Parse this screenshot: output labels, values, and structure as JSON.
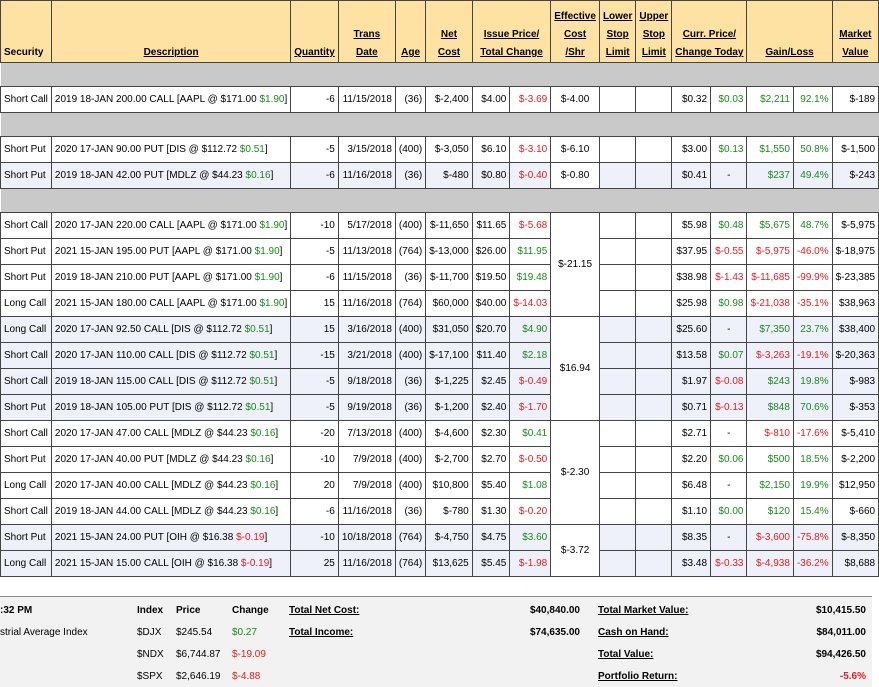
{
  "headers": {
    "security": "Security",
    "description": "Description",
    "quantity": "Quantity",
    "trans_date_1": "Trans",
    "trans_date_2": "Date",
    "age": "Age",
    "net_cost_1": "Net",
    "net_cost_2": "Cost",
    "issue_price_1": "Issue Price/",
    "issue_price_2": "Total Change",
    "eff_cost_1": "Effective",
    "eff_cost_2": "Cost",
    "eff_cost_3": "/Shr",
    "lower_stop_1": "Lower",
    "lower_stop_2": "Stop",
    "lower_stop_3": "Limit",
    "upper_stop_1": "Upper",
    "upper_stop_2": "Stop",
    "upper_stop_3": "Limit",
    "curr_price_1": "Curr. Price/",
    "curr_price_2": "Change Today",
    "gain_loss": "Gain/Loss",
    "market_value_1": "Market",
    "market_value_2": "Value"
  },
  "rows": [
    {
      "sec": "Short Call",
      "desc": "2019 18-JAN 200.00 CALL [AAPL @ $171.00 ",
      "dchg": "$1.90",
      "dsign": "pos",
      "qty": "-6",
      "date": "11/15/2018",
      "age": "(36)",
      "cost": "$-2,400",
      "issue": "$4.00",
      "tchg": "$-3.69",
      "tsign": "neg",
      "curr": "$0.32",
      "today": "$0.03",
      "ysign": "pos",
      "gl": "$2,211",
      "glp": "92.1%",
      "gsign": "pos",
      "mv": "$-189"
    },
    {
      "sec": "Short Put",
      "desc": "2020 17-JAN 90.00 PUT [DIS @ $112.72 ",
      "dchg": "$0.51",
      "dsign": "pos",
      "qty": "-5",
      "date": "3/15/2018",
      "age": "(400)",
      "cost": "$-3,050",
      "issue": "$6.10",
      "tchg": "$-3.10",
      "tsign": "neg",
      "curr": "$3.00",
      "today": "$0.13",
      "ysign": "pos",
      "gl": "$1,550",
      "glp": "50.8%",
      "gsign": "pos",
      "mv": "$-1,500"
    },
    {
      "sec": "Short Put",
      "desc": "2019 18-JAN 42.00 PUT [MDLZ @ $44.23 ",
      "dchg": "$0.16",
      "dsign": "pos",
      "qty": "-6",
      "date": "11/16/2018",
      "age": "(36)",
      "cost": "$-480",
      "issue": "$0.80",
      "tchg": "$-0.40",
      "tsign": "neg",
      "curr": "$0.41",
      "today": "-",
      "ysign": "none",
      "gl": "$237",
      "glp": "49.4%",
      "gsign": "pos",
      "mv": "$-243"
    },
    {
      "sec": "Short Call",
      "desc": "2020 17-JAN 220.00 CALL [AAPL @ $171.00 ",
      "dchg": "$1.90",
      "dsign": "pos",
      "qty": "-10",
      "date": "5/17/2018",
      "age": "(400)",
      "cost": "$-11,650",
      "issue": "$11.65",
      "tchg": "$-5.68",
      "tsign": "neg",
      "curr": "$5.98",
      "today": "$0.48",
      "ysign": "pos",
      "gl": "$5,675",
      "glp": "48.7%",
      "gsign": "pos",
      "mv": "$-5,975"
    },
    {
      "sec": "Short Put",
      "desc": "2021 15-JAN 195.00 PUT [AAPL @ $171.00 ",
      "dchg": "$1.90",
      "dsign": "pos",
      "qty": "-5",
      "date": "11/13/2018",
      "age": "(764)",
      "cost": "$-13,000",
      "issue": "$26.00",
      "tchg": "$11.95",
      "tsign": "pos",
      "curr": "$37.95",
      "today": "$-0.55",
      "ysign": "neg",
      "gl": "$-5,975",
      "glp": "-46.0%",
      "gsign": "neg",
      "mv": "$-18,975"
    },
    {
      "sec": "Short Put",
      "desc": "2019 18-JAN 210.00 PUT [AAPL @ $171.00 ",
      "dchg": "$1.90",
      "dsign": "pos",
      "qty": "-6",
      "date": "11/15/2018",
      "age": "(36)",
      "cost": "$-11,700",
      "issue": "$19.50",
      "tchg": "$19.48",
      "tsign": "pos",
      "curr": "$38.98",
      "today": "$-1.43",
      "ysign": "neg",
      "gl": "$-11,685",
      "glp": "-99.9%",
      "gsign": "neg",
      "mv": "$-23,385"
    },
    {
      "sec": "Long Call",
      "desc": "2021 15-JAN 180.00 CALL [AAPL @ $171.00 ",
      "dchg": "$1.90",
      "dsign": "pos",
      "qty": "15",
      "date": "11/16/2018",
      "age": "(764)",
      "cost": "$60,000",
      "issue": "$40.00",
      "tchg": "$-14.03",
      "tsign": "neg",
      "curr": "$25.98",
      "today": "$0.98",
      "ysign": "pos",
      "gl": "$-21,038",
      "glp": "-35.1%",
      "gsign": "neg",
      "mv": "$38,963"
    },
    {
      "sec": "Long Call",
      "desc": "2020 17-JAN 92.50 CALL [DIS @ $112.72 ",
      "dchg": "$0.51",
      "dsign": "pos",
      "qty": "15",
      "date": "3/16/2018",
      "age": "(400)",
      "cost": "$31,050",
      "issue": "$20.70",
      "tchg": "$4.90",
      "tsign": "pos",
      "curr": "$25.60",
      "today": "-",
      "ysign": "none",
      "gl": "$7,350",
      "glp": "23.7%",
      "gsign": "pos",
      "mv": "$38,400"
    },
    {
      "sec": "Short Call",
      "desc": "2020 17-JAN 110.00 CALL [DIS @ $112.72 ",
      "dchg": "$0.51",
      "dsign": "pos",
      "qty": "-15",
      "date": "3/21/2018",
      "age": "(400)",
      "cost": "$-17,100",
      "issue": "$11.40",
      "tchg": "$2.18",
      "tsign": "pos",
      "curr": "$13.58",
      "today": "$0.07",
      "ysign": "pos",
      "gl": "$-3,263",
      "glp": "-19.1%",
      "gsign": "neg",
      "mv": "$-20,363"
    },
    {
      "sec": "Short Call",
      "desc": "2019 18-JAN 115.00 CALL [DIS @ $112.72 ",
      "dchg": "$0.51",
      "dsign": "pos",
      "qty": "-5",
      "date": "9/18/2018",
      "age": "(36)",
      "cost": "$-1,225",
      "issue": "$2.45",
      "tchg": "$-0.49",
      "tsign": "neg",
      "curr": "$1.97",
      "today": "$-0.08",
      "ysign": "neg",
      "gl": "$243",
      "glp": "19.8%",
      "gsign": "pos",
      "mv": "$-983"
    },
    {
      "sec": "Short Put",
      "desc": "2019 18-JAN 105.00 PUT [DIS @ $112.72 ",
      "dchg": "$0.51",
      "dsign": "pos",
      "qty": "-5",
      "date": "9/19/2018",
      "age": "(36)",
      "cost": "$-1,200",
      "issue": "$2.40",
      "tchg": "$-1.70",
      "tsign": "neg",
      "curr": "$0.71",
      "today": "$-0.13",
      "ysign": "neg",
      "gl": "$848",
      "glp": "70.6%",
      "gsign": "pos",
      "mv": "$-353"
    },
    {
      "sec": "Short Call",
      "desc": "2020 17-JAN 47.00 CALL [MDLZ @ $44.23 ",
      "dchg": "$0.16",
      "dsign": "pos",
      "qty": "-20",
      "date": "7/13/2018",
      "age": "(400)",
      "cost": "$-4,600",
      "issue": "$2.30",
      "tchg": "$0.41",
      "tsign": "pos",
      "curr": "$2.71",
      "today": "-",
      "ysign": "none",
      "gl": "$-810",
      "glp": "-17.6%",
      "gsign": "neg",
      "mv": "$-5,410"
    },
    {
      "sec": "Short Put",
      "desc": "2020 17-JAN 40.00 PUT [MDLZ @ $44.23 ",
      "dchg": "$0.16",
      "dsign": "pos",
      "qty": "-10",
      "date": "7/9/2018",
      "age": "(400)",
      "cost": "$-2,700",
      "issue": "$2.70",
      "tchg": "$-0.50",
      "tsign": "neg",
      "curr": "$2.20",
      "today": "$0.06",
      "ysign": "pos",
      "gl": "$500",
      "glp": "18.5%",
      "gsign": "pos",
      "mv": "$-2,200"
    },
    {
      "sec": "Long Call",
      "desc": "2020 17-JAN 40.00 CALL [MDLZ @ $44.23 ",
      "dchg": "$0.16",
      "dsign": "pos",
      "qty": "20",
      "date": "7/9/2018",
      "age": "(400)",
      "cost": "$10,800",
      "issue": "$5.40",
      "tchg": "$1.08",
      "tsign": "pos",
      "curr": "$6.48",
      "today": "-",
      "ysign": "none",
      "gl": "$2,150",
      "glp": "19.9%",
      "gsign": "pos",
      "mv": "$12,950"
    },
    {
      "sec": "Short Call",
      "desc": "2019 18-JAN 44.00 CALL [MDLZ @ $44.23 ",
      "dchg": "$0.16",
      "dsign": "pos",
      "qty": "-6",
      "date": "11/16/2018",
      "age": "(36)",
      "cost": "$-780",
      "issue": "$1.30",
      "tchg": "$-0.20",
      "tsign": "neg",
      "curr": "$1.10",
      "today": "$0.00",
      "ysign": "pos",
      "gl": "$120",
      "glp": "15.4%",
      "gsign": "pos",
      "mv": "$-660"
    },
    {
      "sec": "Short Put",
      "desc": "2021 15-JAN 24.00 PUT [OIH @ $16.38 ",
      "dchg": "$-0.19",
      "dsign": "neg",
      "qty": "-10",
      "date": "10/18/2018",
      "age": "(764)",
      "cost": "$-4,750",
      "issue": "$4.75",
      "tchg": "$3.60",
      "tsign": "pos",
      "curr": "$8.35",
      "today": "-",
      "ysign": "none",
      "gl": "$-3,600",
      "glp": "-75.8%",
      "gsign": "neg",
      "mv": "$-8,350"
    },
    {
      "sec": "Long Call",
      "desc": "2021 15-JAN 15.00 CALL [OIH @ $16.38 ",
      "dchg": "$-0.19",
      "dsign": "neg",
      "qty": "25",
      "date": "11/16/2018",
      "age": "(764)",
      "cost": "$13,625",
      "issue": "$5.45",
      "tchg": "$-1.98",
      "tsign": "neg",
      "curr": "$3.48",
      "today": "$-0.33",
      "ysign": "neg",
      "gl": "$-4,938",
      "glp": "-36.2%",
      "gsign": "neg",
      "mv": "$8,688"
    }
  ],
  "effective_costs": {
    "aapl_short_call": "$-4.00",
    "dis_short_put": "$-6.10",
    "mdlz_short_put": "$-0.80",
    "aapl_group": "$-21.15",
    "dis_group": "$16.94",
    "mdlz_group": "$-2.30",
    "oih_group": "$-3.72"
  },
  "footer": {
    "time": ":32 PM",
    "index_label": "strial Average Index",
    "col_index": "Index",
    "col_price": "Price",
    "col_change": "Change",
    "indices": [
      {
        "sym": "$DJX",
        "price": "$245.54",
        "chg": "$0.27",
        "sign": "pos"
      },
      {
        "sym": "$NDX",
        "price": "$6,744.87",
        "chg": "$-19.09",
        "sign": "neg"
      },
      {
        "sym": "$SPX",
        "price": "$2,646.19",
        "chg": "$-4.88",
        "sign": "neg"
      }
    ],
    "total_net_cost_label": "Total Net Cost:",
    "total_net_cost": "$40,840.00",
    "total_income_label": "Total Income:",
    "total_income": "$74,635.00",
    "total_market_value_label": "Total Market Value:",
    "total_market_value": "$10,415.50",
    "cash_on_hand_label": "Cash on Hand:",
    "cash_on_hand": "$84,011.00",
    "total_value_label": "Total Value:",
    "total_value": "$94,426.50",
    "portfolio_return_label": "Portfolio Return:",
    "portfolio_return": "-5.6%"
  },
  "colors": {
    "header_bg": "#fde2a3",
    "positive": "#1a8a1a",
    "negative": "#e0201f",
    "alt_row": "#eef0fa",
    "separator": "#c9c9c9"
  }
}
